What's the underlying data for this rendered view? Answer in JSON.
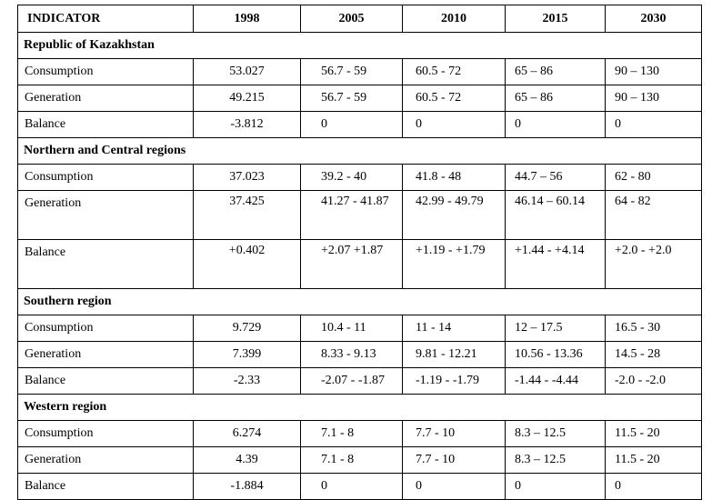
{
  "headers": [
    "INDICATOR",
    "1998",
    "2005",
    "2010",
    "2015",
    "2030"
  ],
  "sections": [
    {
      "title": "Republic of Kazakhstan",
      "rows": [
        {
          "label": "Consumption",
          "values": [
            "53.027",
            "56.7 - 59",
            "60.5 - 72",
            "65 – 86",
            "90 – 130"
          ]
        },
        {
          "label": "Generation",
          "values": [
            "49.215",
            "56.7 - 59",
            "60.5 - 72",
            "65 – 86",
            "90 – 130"
          ]
        },
        {
          "label": "Balance",
          "values": [
            "-3.812",
            "0",
            "0",
            "0",
            "0"
          ]
        }
      ]
    },
    {
      "title": "Northern and Central regions",
      "rows": [
        {
          "label": "Consumption",
          "values": [
            "37.023",
            "39.2 - 40",
            "41.8 - 48",
            "44.7 – 56",
            "62 - 80"
          ]
        },
        {
          "label": "Generation",
          "values": [
            "37.425",
            "41.27 - 41.87",
            "42.99 - 49.79",
            "46.14 – 60.14",
            "64 - 82"
          ]
        },
        {
          "label": "Balance",
          "values": [
            "+0.402",
            "+2.07 +1.87",
            "+1.19 - +1.79",
            "+1.44 - +4.14",
            "+2.0 - +2.0"
          ]
        }
      ]
    },
    {
      "title": "Southern region",
      "rows": [
        {
          "label": "Consumption",
          "values": [
            "9.729",
            "10.4 - 11",
            "11 - 14",
            "12 – 17.5",
            "16.5 - 30"
          ]
        },
        {
          "label": "Generation",
          "values": [
            "7.399",
            "8.33 - 9.13",
            "9.81 - 12.21",
            "10.56 - 13.36",
            "14.5 - 28"
          ]
        },
        {
          "label": "Balance",
          "values": [
            "-2.33",
            "-2.07 - -1.87",
            "-1.19 - -1.79",
            "-1.44 - -4.44",
            "-2.0 - -2.0"
          ]
        }
      ]
    },
    {
      "title": "Western region",
      "rows": [
        {
          "label": "Consumption",
          "values": [
            "6.274",
            "7.1 - 8",
            "7.7 - 10",
            "8.3 – 12.5",
            "11.5 - 20"
          ]
        },
        {
          "label": "Generation",
          "values": [
            "4.39",
            "7.1 - 8",
            "7.7 - 10",
            "8.3 – 12.5",
            "11.5 - 20"
          ]
        },
        {
          "label": "Balance",
          "values": [
            "-1.884",
            "0",
            "0",
            "0",
            "0"
          ]
        }
      ]
    }
  ]
}
